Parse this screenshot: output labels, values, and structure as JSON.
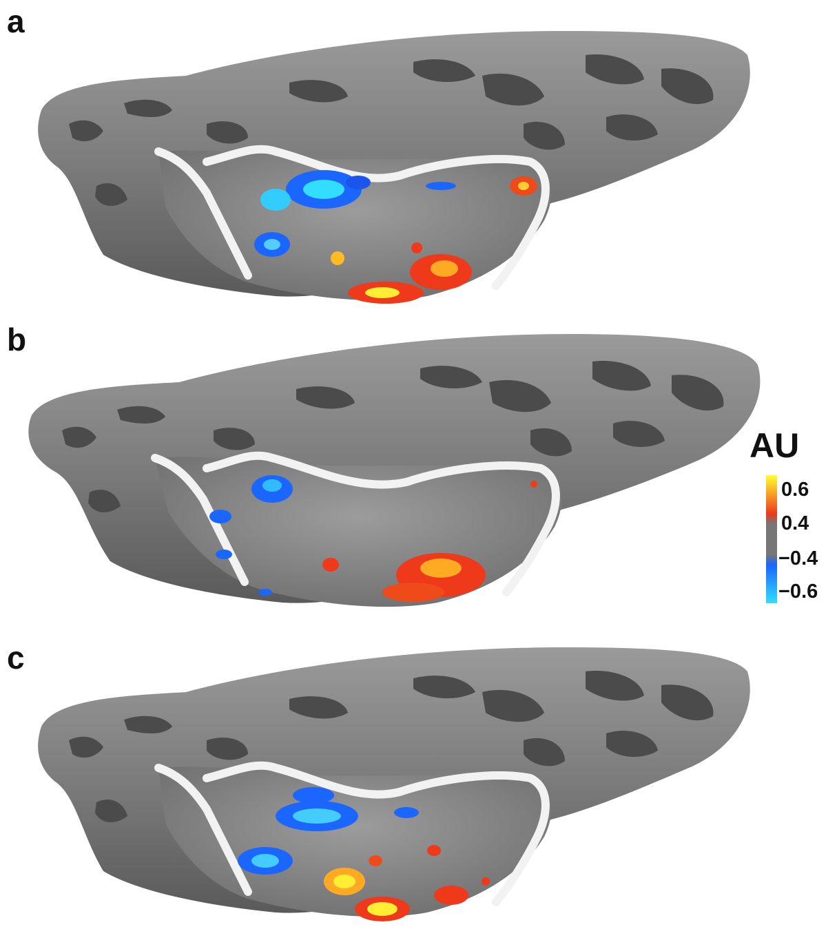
{
  "panels": [
    {
      "label": "a"
    },
    {
      "label": "b"
    },
    {
      "label": "c"
    }
  ],
  "colorbar": {
    "title": "AU",
    "ticks": [
      "0.6",
      "0.4",
      "−0.4",
      "−0.6"
    ],
    "colors": {
      "high": "#ffff33",
      "positive": "#ee3a1a",
      "neutral": "#777777",
      "negative": "#1a66ff",
      "low": "#33ddff"
    }
  },
  "surface_colors": {
    "gyri": "#8a8a8a",
    "sulci": "#4a4a4a",
    "roi_outline": "#f2f2f2"
  }
}
